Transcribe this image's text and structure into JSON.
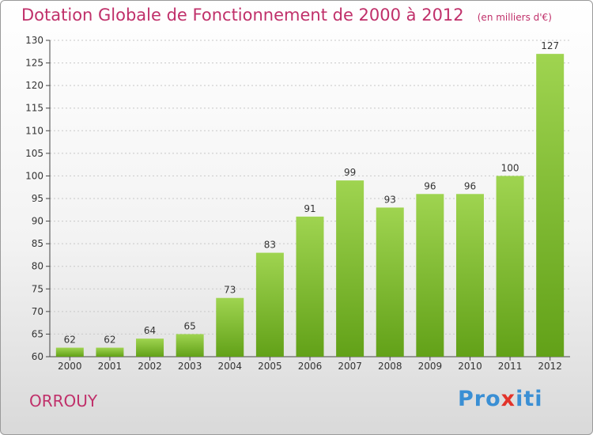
{
  "chart_data": {
    "type": "bar",
    "title": "Dotation Globale de Fonctionnement de 2000 à 2012",
    "subtitle": "(en milliers d'€)",
    "categories": [
      "2000",
      "2001",
      "2002",
      "2003",
      "2004",
      "2005",
      "2006",
      "2007",
      "2008",
      "2009",
      "2010",
      "2011",
      "2012"
    ],
    "values": [
      62,
      62,
      64,
      65,
      73,
      83,
      91,
      99,
      93,
      96,
      96,
      100,
      127
    ],
    "ylim": [
      60,
      130
    ],
    "yticks": [
      60,
      65,
      70,
      75,
      80,
      85,
      90,
      95,
      100,
      105,
      110,
      115,
      120,
      125,
      130
    ],
    "grid": true,
    "colors": {
      "bar_top": "#9fd450",
      "bar_bottom": "#62a118",
      "axis": "#444444",
      "text": "#333333",
      "title": "#c0306a"
    }
  },
  "footer": {
    "commune": "ORROUY",
    "logo": [
      "Pro",
      "x",
      "iti"
    ]
  }
}
